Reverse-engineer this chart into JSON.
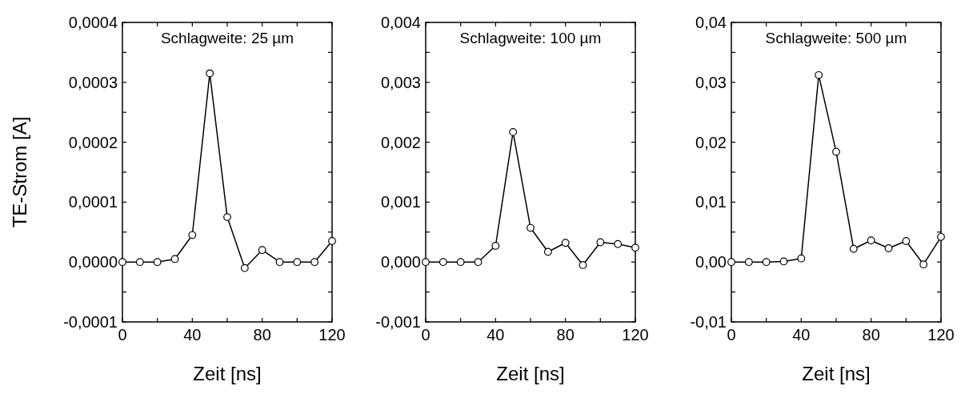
{
  "chart_data": [
    {
      "type": "line",
      "ylabel": "TE-Strom [A]",
      "xlabel": "Zeit [ns]",
      "annotations": [
        "Schlagweite: 25 µm"
      ],
      "marker": "circle",
      "x": [
        0,
        10,
        20,
        30,
        40,
        50,
        60,
        70,
        80,
        90,
        100,
        110,
        120
      ],
      "series": [
        {
          "color": "#000000",
          "values": [
            0,
            0,
            0,
            5e-06,
            4.5e-05,
            0.000315,
            7.5e-05,
            -1e-05,
            2e-05,
            0,
            0,
            0,
            3.5e-05
          ]
        }
      ],
      "xlim": [
        0,
        120
      ],
      "xticks": [
        0,
        {
          "value": 20,
          "label": null
        },
        40,
        {
          "value": 60,
          "label": null
        },
        80,
        {
          "value": 100,
          "label": null
        },
        120
      ],
      "ylim": [
        -0.0001,
        0.0004
      ],
      "yticks": [
        {
          "value": -0.0001,
          "label": "-0,0001"
        },
        {
          "value": -5e-05,
          "label": null
        },
        {
          "value": 0,
          "label": "0,0000"
        },
        {
          "value": 5e-05,
          "label": null
        },
        {
          "value": 0.0001,
          "label": "0,0001"
        },
        {
          "value": 0.00015,
          "label": null
        },
        {
          "value": 0.0002,
          "label": "0,0002"
        },
        {
          "value": 0.00025,
          "label": null
        },
        {
          "value": 0.0003,
          "label": "0,0003"
        },
        {
          "value": 0.00035,
          "label": null
        },
        {
          "value": 0.0004,
          "label": "0,0004"
        }
      ]
    },
    {
      "type": "line",
      "xlabel": "Zeit [ns]",
      "annotations": [
        "Schlagweite: 100 µm"
      ],
      "marker": "circle",
      "x": [
        0,
        10,
        20,
        30,
        40,
        50,
        60,
        70,
        80,
        90,
        100,
        110,
        120
      ],
      "series": [
        {
          "color": "#000000",
          "values": [
            0,
            0,
            0,
            0,
            0.00027,
            0.00217,
            0.00057,
            0.00017,
            0.00032,
            -5e-05,
            0.00033,
            0.0003,
            0.00024
          ]
        }
      ],
      "xlim": [
        0,
        120
      ],
      "xticks": [
        0,
        {
          "value": 20,
          "label": null
        },
        40,
        {
          "value": 60,
          "label": null
        },
        80,
        {
          "value": 100,
          "label": null
        },
        120
      ],
      "ylim": [
        -0.001,
        0.004
      ],
      "yticks": [
        {
          "value": -0.001,
          "label": "-0,001"
        },
        {
          "value": -0.0005,
          "label": null
        },
        {
          "value": 0,
          "label": "0,000"
        },
        {
          "value": 0.0005,
          "label": null
        },
        {
          "value": 0.001,
          "label": "0,001"
        },
        {
          "value": 0.0015,
          "label": null
        },
        {
          "value": 0.002,
          "label": "0,002"
        },
        {
          "value": 0.0025,
          "label": null
        },
        {
          "value": 0.003,
          "label": "0,003"
        },
        {
          "value": 0.0035,
          "label": null
        },
        {
          "value": 0.004,
          "label": "0,004"
        }
      ]
    },
    {
      "type": "line",
      "xlabel": "Zeit [ns]",
      "annotations": [
        "Schlagweite: 500 µm"
      ],
      "marker": "circle",
      "x": [
        0,
        10,
        20,
        30,
        40,
        50,
        60,
        70,
        80,
        90,
        100,
        110,
        120
      ],
      "series": [
        {
          "color": "#000000",
          "values": [
            0,
            0,
            0,
            0.0001,
            0.0006,
            0.0312,
            0.0184,
            0.0022,
            0.0036,
            0.0023,
            0.0035,
            -0.0004,
            0.0042
          ]
        }
      ],
      "xlim": [
        0,
        120
      ],
      "xticks": [
        0,
        {
          "value": 20,
          "label": null
        },
        40,
        {
          "value": 60,
          "label": null
        },
        80,
        {
          "value": 100,
          "label": null
        },
        120
      ],
      "ylim": [
        -0.01,
        0.04
      ],
      "yticks": [
        {
          "value": -0.01,
          "label": "-0,01"
        },
        {
          "value": -0.005,
          "label": null
        },
        {
          "value": 0,
          "label": "0,00"
        },
        {
          "value": 0.005,
          "label": null
        },
        {
          "value": 0.01,
          "label": "0,01"
        },
        {
          "value": 0.015,
          "label": null
        },
        {
          "value": 0.02,
          "label": "0,02"
        },
        {
          "value": 0.025,
          "label": null
        },
        {
          "value": 0.03,
          "label": "0,03"
        },
        {
          "value": 0.035,
          "label": null
        },
        {
          "value": 0.04,
          "label": "0,04"
        }
      ]
    }
  ]
}
